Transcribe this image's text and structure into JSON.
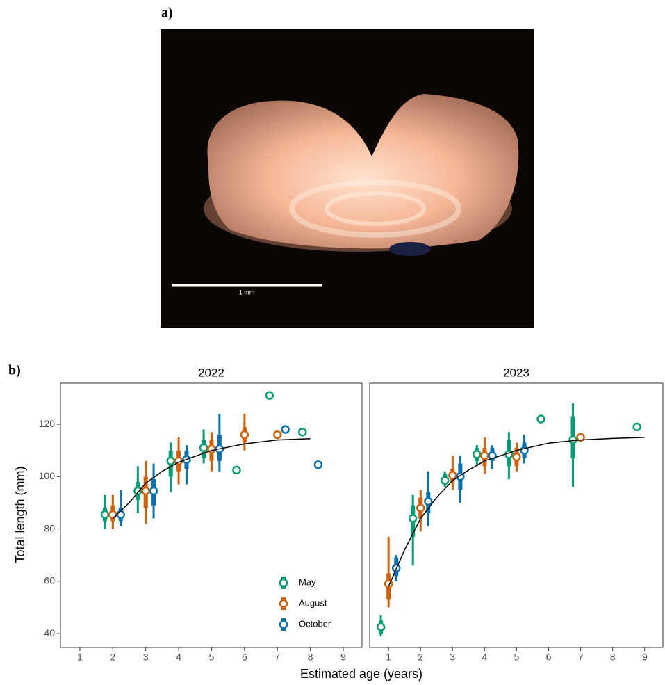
{
  "panel_a_label": "a)",
  "photo": {
    "scale_label": "1 mm"
  },
  "panel_b_label": "b)",
  "shared_axes": {
    "xlabel": "Estimated age (years)",
    "ylabel": "Total length (mm)"
  },
  "chart_data": [
    {
      "type": "pointrange",
      "title": "2022",
      "xlim": [
        0.41,
        9.57
      ],
      "xticks": [
        1,
        2,
        3,
        4,
        5,
        6,
        7,
        8,
        9
      ],
      "ylim": [
        34.7,
        135.7
      ],
      "yticks": [
        40,
        60,
        80,
        100,
        120
      ],
      "legend": "lower right",
      "series": [
        {
          "name": "May",
          "color": "#009e73",
          "x": [
            2,
            3,
            4,
            5,
            6,
            7,
            8
          ],
          "values": [
            85.5,
            94.5,
            106,
            111,
            102.5,
            131,
            117
          ],
          "inner_low": [
            83,
            91,
            100,
            107,
            null,
            null,
            null
          ],
          "inner_high": [
            88,
            98,
            110,
            114,
            null,
            null,
            null
          ],
          "outer_low": [
            80,
            86,
            94,
            105,
            null,
            null,
            null
          ],
          "outer_high": [
            93,
            104,
            113,
            118,
            null,
            null,
            null
          ]
        },
        {
          "name": "August",
          "color": "#d55e00",
          "x": [
            2,
            3,
            4,
            5,
            6,
            7
          ],
          "values": [
            85.5,
            94.5,
            106,
            110.5,
            116,
            116
          ],
          "inner_low": [
            83,
            88,
            102,
            106,
            113,
            null
          ],
          "inner_high": [
            89,
            100,
            110,
            114,
            119,
            null
          ],
          "outer_low": [
            80,
            82,
            97,
            102,
            110,
            null
          ],
          "outer_high": [
            93,
            106,
            115,
            117,
            124,
            null
          ]
        },
        {
          "name": "October",
          "color": "#0072b2",
          "x": [
            2,
            3,
            4,
            5,
            7,
            8
          ],
          "values": [
            85.5,
            94.5,
            106.5,
            110.5,
            118,
            104.5
          ],
          "inner_low": [
            83,
            89,
            103,
            106,
            null,
            null
          ],
          "inner_high": [
            88,
            99,
            110,
            116,
            null,
            null
          ],
          "outer_low": [
            81,
            84,
            97,
            102,
            null,
            null
          ],
          "outer_high": [
            95,
            105,
            112,
            124,
            null,
            null
          ]
        }
      ],
      "fit": {
        "x": [
          2,
          2.5,
          3,
          3.5,
          4,
          5,
          6,
          7,
          8
        ],
        "y": [
          84,
          90,
          97.5,
          102,
          105.5,
          110,
          112.5,
          114,
          114.5
        ]
      }
    },
    {
      "type": "pointrange",
      "title": "2023",
      "xlim": [
        0.41,
        9.57
      ],
      "xticks": [
        1,
        2,
        3,
        4,
        5,
        6,
        7,
        8,
        9
      ],
      "ylim": [
        34.7,
        135.7
      ],
      "series": [
        {
          "color": "#009e73",
          "x": [
            1,
            2,
            3,
            4,
            5,
            6,
            7,
            9
          ],
          "values": [
            42.5,
            84,
            98.5,
            108.5,
            108.5,
            122,
            114,
            119
          ],
          "inner_low": [
            40,
            77,
            97,
            106,
            104,
            null,
            107,
            null
          ],
          "inner_high": [
            45,
            89,
            101,
            111,
            114,
            null,
            123,
            null
          ],
          "outer_low": [
            39,
            66,
            96,
            104,
            99,
            null,
            96,
            null
          ],
          "outer_high": [
            47,
            93,
            102,
            112,
            117,
            null,
            128,
            null
          ]
        },
        {
          "color": "#d55e00",
          "x": [
            1,
            2,
            3,
            4,
            5,
            7
          ],
          "values": [
            59,
            88,
            100.5,
            108,
            107.5,
            115
          ],
          "inner_low": [
            53,
            84,
            98,
            104,
            104,
            null
          ],
          "inner_high": [
            63,
            92,
            103,
            111,
            111,
            null
          ],
          "outer_low": [
            50,
            79,
            95,
            101,
            102,
            null
          ],
          "outer_high": [
            77,
            95,
            108,
            115,
            113,
            null
          ]
        },
        {
          "color": "#0072b2",
          "x": [
            1,
            2,
            3,
            4,
            5
          ],
          "values": [
            65,
            90.5,
            100,
            108,
            110
          ],
          "inner_low": [
            62,
            86,
            95,
            106,
            107
          ],
          "inner_high": [
            69,
            94,
            105,
            111,
            113
          ],
          "outer_low": [
            60,
            81,
            90,
            103,
            105
          ],
          "outer_high": [
            70,
            102,
            108,
            112,
            116
          ]
        }
      ],
      "fit": {
        "x": [
          1,
          1.5,
          2,
          2.5,
          3,
          3.5,
          4,
          5,
          6,
          7,
          8,
          9
        ],
        "y": [
          58,
          72,
          84,
          92,
          98.5,
          102.5,
          106,
          110,
          112.8,
          114,
          114.6,
          115
        ]
      }
    }
  ]
}
